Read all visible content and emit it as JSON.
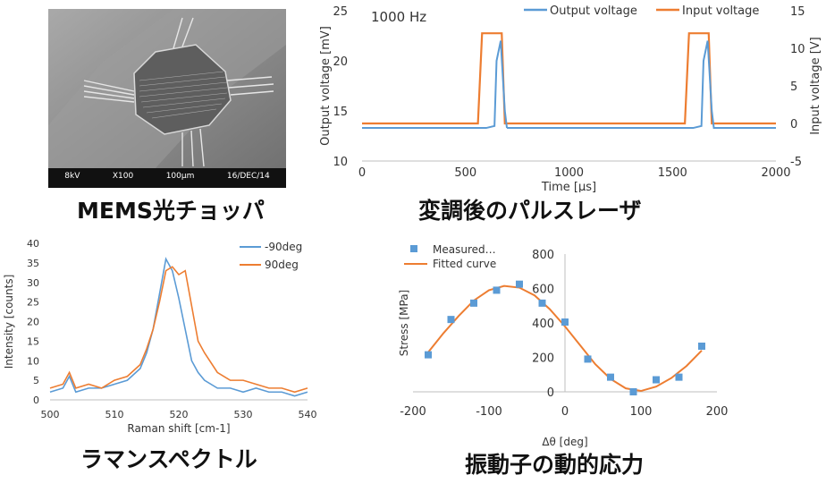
{
  "sem_image": {
    "scale_info": [
      "8kV",
      "X100",
      "100μm",
      "16/DEC/14"
    ]
  },
  "captions": {
    "mems": "MEMS光チョッパ",
    "pulse": "変調後のパルスレーザ",
    "raman": "ラマンスペクトル",
    "stress": "振動子の動的応力"
  },
  "colors": {
    "blue": "#5b9bd5",
    "orange": "#ed7d31"
  },
  "chart_data": [
    {
      "type": "line",
      "annotation": "1000 Hz",
      "xlabel": "Time [μs]",
      "ylabel": "Output voltage [mV]",
      "y2label": "Input voltage [V]",
      "xlim": [
        0,
        2000
      ],
      "ylim": [
        10,
        25
      ],
      "y2lim": [
        -5,
        15
      ],
      "xticks": [
        0,
        500,
        1000,
        1500,
        2000
      ],
      "yticks": [
        10,
        15,
        20,
        25
      ],
      "y2ticks": [
        -5,
        0,
        5,
        10,
        15
      ],
      "legend_position": "top",
      "series": [
        {
          "name": "Output voltage",
          "axis": "left",
          "x": [
            0,
            600,
            640,
            650,
            670,
            690,
            700,
            2000,
            1600,
            1640,
            1650,
            1670,
            1690,
            1700
          ],
          "y": [
            13.3,
            13.3,
            13.5,
            20,
            22,
            15,
            13.3,
            13.3,
            13.3,
            13.5,
            20,
            22,
            15,
            13.3
          ]
        },
        {
          "name": "Input voltage",
          "axis": "right",
          "x": [
            0,
            560,
            580,
            675,
            690,
            1560,
            1580,
            1675,
            1690,
            2000
          ],
          "y": [
            0,
            0,
            12,
            12,
            0,
            0,
            12,
            12,
            0,
            0
          ]
        }
      ]
    },
    {
      "type": "line",
      "xlabel": "Raman shift [cm-1]",
      "ylabel": "Intensity [counts]",
      "xlim": [
        500,
        540
      ],
      "ylim": [
        0,
        40
      ],
      "xticks": [
        500,
        510,
        520,
        530,
        540
      ],
      "yticks": [
        0,
        5,
        10,
        15,
        20,
        25,
        30,
        35,
        40
      ],
      "legend_position": "top-right",
      "series": [
        {
          "name": "-90deg",
          "x": [
            500,
            502,
            503,
            504,
            506,
            508,
            510,
            512,
            514,
            515,
            516,
            517,
            518,
            519,
            520,
            521,
            522,
            523,
            524,
            526,
            528,
            530,
            532,
            534,
            536,
            538,
            540
          ],
          "y": [
            2,
            3,
            6,
            2,
            3,
            3,
            4,
            5,
            8,
            12,
            18,
            27,
            36,
            33,
            26,
            18,
            10,
            7,
            5,
            3,
            3,
            2,
            3,
            2,
            2,
            1,
            2
          ]
        },
        {
          "name": "90deg",
          "x": [
            500,
            502,
            503,
            504,
            506,
            508,
            510,
            512,
            514,
            515,
            516,
            517,
            518,
            519,
            520,
            521,
            522,
            523,
            524,
            526,
            528,
            530,
            532,
            534,
            536,
            538,
            540
          ],
          "y": [
            3,
            4,
            7,
            3,
            4,
            3,
            5,
            6,
            9,
            13,
            18,
            25,
            33,
            34,
            32,
            33,
            24,
            15,
            12,
            7,
            5,
            5,
            4,
            3,
            3,
            2,
            3
          ]
        }
      ]
    },
    {
      "type": "scatter",
      "xlabel": "Δθ [deg]",
      "ylabel": "Stress [MPa]",
      "xlim": [
        -200,
        200
      ],
      "ylim": [
        0,
        800
      ],
      "xticks": [
        -200,
        -100,
        0,
        100,
        200
      ],
      "yticks": [
        0,
        200,
        400,
        600,
        800
      ],
      "legend_position": "top-left",
      "series": [
        {
          "name": "Measured…",
          "marker": "square",
          "x": [
            -180,
            -150,
            -120,
            -90,
            -60,
            -30,
            0,
            30,
            60,
            90,
            120,
            150,
            180
          ],
          "y": [
            215,
            420,
            515,
            590,
            625,
            515,
            405,
            190,
            85,
            0,
            70,
            85,
            265
          ]
        },
        {
          "name": "Fitted curve",
          "marker": "line",
          "x": [
            -180,
            -160,
            -140,
            -120,
            -100,
            -80,
            -60,
            -40,
            -20,
            0,
            20,
            40,
            60,
            80,
            100,
            120,
            140,
            160,
            180
          ],
          "y": [
            230,
            340,
            440,
            530,
            590,
            615,
            605,
            560,
            480,
            380,
            270,
            160,
            75,
            20,
            5,
            30,
            80,
            150,
            240
          ]
        }
      ]
    }
  ]
}
